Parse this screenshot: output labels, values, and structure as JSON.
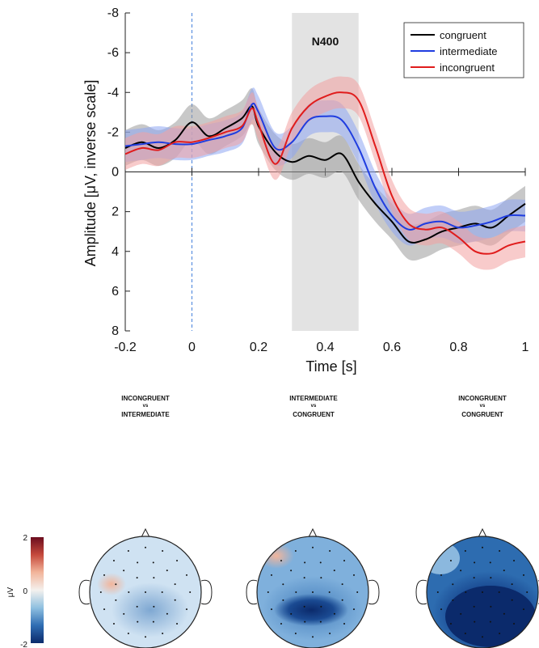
{
  "chart_data": {
    "type": "line",
    "xlabel": "Time [s]",
    "ylabel": "Amplitude [μV, inverse scale]",
    "xlim": [
      -0.2,
      1.0
    ],
    "ylim": [
      -8,
      8
    ],
    "y_inverted": true,
    "grid": false,
    "legend_position": "top-right",
    "x_ticks": [
      "-0.2",
      "0",
      "0.2",
      "0.4",
      "0.6",
      "0.8",
      "1"
    ],
    "y_ticks": [
      "-8",
      "-6",
      "-4",
      "-2",
      "0",
      "2",
      "4",
      "6",
      "8"
    ],
    "highlight_window": {
      "label": "N400",
      "start": 0.3,
      "end": 0.5
    },
    "stimulus_onset": 0.0,
    "x": [
      -0.2,
      -0.15,
      -0.1,
      -0.05,
      0.0,
      0.05,
      0.1,
      0.15,
      0.18,
      0.2,
      0.25,
      0.3,
      0.35,
      0.4,
      0.45,
      0.5,
      0.55,
      0.6,
      0.65,
      0.7,
      0.75,
      0.8,
      0.85,
      0.9,
      0.95,
      1.0
    ],
    "series": [
      {
        "name": "congruent",
        "color": "#000000",
        "band_color": "#9a9a9a",
        "values": [
          -1.2,
          -1.5,
          -1.2,
          -1.6,
          -2.5,
          -1.8,
          -2.2,
          -2.7,
          -3.3,
          -2.3,
          -1.0,
          -0.5,
          -0.8,
          -0.6,
          -0.9,
          0.5,
          1.6,
          2.5,
          3.5,
          3.4,
          3.0,
          2.8,
          2.6,
          2.8,
          2.2,
          1.6
        ],
        "error": 0.9
      },
      {
        "name": "intermediate",
        "color": "#1f3de0",
        "band_color": "#8ea6f2",
        "values": [
          -1.3,
          -1.4,
          -1.5,
          -1.4,
          -1.4,
          -1.6,
          -1.8,
          -2.2,
          -3.4,
          -3.0,
          -1.2,
          -1.5,
          -2.6,
          -2.8,
          -2.6,
          -1.2,
          0.8,
          2.2,
          2.9,
          2.6,
          2.5,
          2.8,
          2.7,
          2.5,
          2.2,
          2.2
        ],
        "error": 0.8
      },
      {
        "name": "incongruent",
        "color": "#e01c1c",
        "band_color": "#f2a0a0",
        "values": [
          -0.9,
          -1.2,
          -1.1,
          -1.5,
          -1.5,
          -1.7,
          -2.0,
          -2.3,
          -3.2,
          -2.4,
          -0.4,
          -2.2,
          -3.3,
          -3.8,
          -4.0,
          -3.6,
          -1.3,
          1.2,
          2.6,
          2.9,
          2.8,
          3.3,
          4.0,
          4.1,
          3.7,
          3.5
        ],
        "error": 0.8
      }
    ]
  },
  "contrasts": [
    {
      "top": "INCONGRUENT",
      "vs": "vs",
      "bottom": "INTERMEDIATE"
    },
    {
      "top": "INTERMEDIATE",
      "vs": "vs",
      "bottom": "CONGRUENT"
    },
    {
      "top": "INCONGRUENT",
      "vs": "vs",
      "bottom": "CONGRUENT"
    }
  ],
  "colorbar": {
    "unit": "μV",
    "max_label": "2",
    "mid_label": "0",
    "min_label": "-2",
    "colors": [
      "#0b2a6b",
      "#2f6db3",
      "#8fc0e0",
      "#f4f1ee",
      "#f2b59b",
      "#c64a3c",
      "#6b0d1e"
    ]
  },
  "topomaps": [
    {
      "contrast": "incongruent vs intermediate",
      "base_color": "#cfe2f2"
    },
    {
      "contrast": "intermediate vs congruent",
      "base_color": "#7fb0dc"
    },
    {
      "contrast": "incongruent vs congruent",
      "base_color": "#2d6cb0"
    }
  ]
}
